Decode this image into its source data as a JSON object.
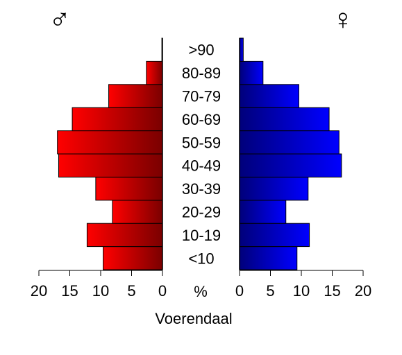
{
  "chart_data": {
    "type": "bar",
    "orientation": "horizontal",
    "layout": "population-pyramid",
    "title": "Voerendaal",
    "unit_label": "%",
    "categories": [
      "<10",
      "10-19",
      "20-29",
      "30-39",
      "40-49",
      "50-59",
      "60-69",
      "70-79",
      "80-89",
      ">90"
    ],
    "series": [
      {
        "name": "♂",
        "side": "left",
        "color": "#ff0000",
        "color_dark": "#7a0000",
        "values": [
          9.6,
          12.2,
          8.1,
          10.8,
          16.8,
          17.0,
          14.6,
          8.7,
          2.6,
          0.1
        ]
      },
      {
        "name": "♀",
        "side": "right",
        "color": "#0000ff",
        "color_dark": "#00007a",
        "values": [
          9.3,
          11.3,
          7.5,
          11.1,
          16.5,
          16.1,
          14.5,
          9.6,
          3.8,
          0.6
        ]
      }
    ],
    "xlim": [
      0,
      20
    ],
    "xticks": [
      0,
      5,
      10,
      15,
      20
    ],
    "grid": false
  }
}
